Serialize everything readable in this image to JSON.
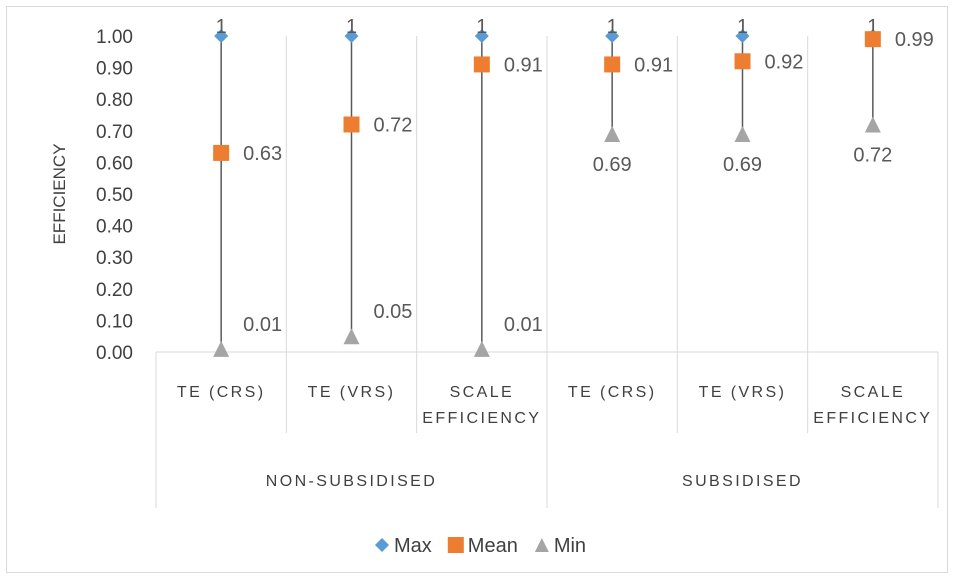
{
  "chart_data": {
    "type": "line",
    "ylabel": "EFFICIENCY",
    "ylim": [
      0,
      1
    ],
    "y_ticks": [
      "0.00",
      "0.10",
      "0.20",
      "0.30",
      "0.40",
      "0.50",
      "0.60",
      "0.70",
      "0.80",
      "0.90",
      "1.00"
    ],
    "groups": [
      {
        "label": "NON-SUBSIDISED",
        "categories": [
          [
            "TE (CRS)"
          ],
          [
            "TE (VRS)"
          ],
          [
            "SCALE",
            "EFFICIENCY"
          ]
        ]
      },
      {
        "label": "SUBSIDISED",
        "categories": [
          [
            "TE (CRS)"
          ],
          [
            "TE (VRS)"
          ],
          [
            "SCALE",
            "EFFICIENCY"
          ]
        ]
      }
    ],
    "series": [
      {
        "name": "Max",
        "color": "#5b9bd5",
        "marker": "diamond",
        "values": [
          1,
          1,
          1,
          1,
          1,
          1
        ],
        "labels": [
          "1",
          "1",
          "1",
          "1",
          "1",
          "1"
        ]
      },
      {
        "name": "Mean",
        "color": "#ed7d31",
        "marker": "square",
        "values": [
          0.63,
          0.72,
          0.91,
          0.91,
          0.92,
          0.99
        ],
        "labels": [
          "0.63",
          "0.72",
          "0.91",
          "0.91",
          "0.92",
          "0.99"
        ]
      },
      {
        "name": "Min",
        "color": "#a5a5a5",
        "marker": "triangle",
        "values": [
          0.01,
          0.05,
          0.01,
          0.69,
          0.69,
          0.72
        ],
        "labels": [
          "0.01",
          "0.05",
          "0.01",
          "0.69",
          "0.69",
          "0.72"
        ]
      }
    ],
    "high_low_lines": true,
    "legend_position": "bottom",
    "grid": "vertical"
  }
}
